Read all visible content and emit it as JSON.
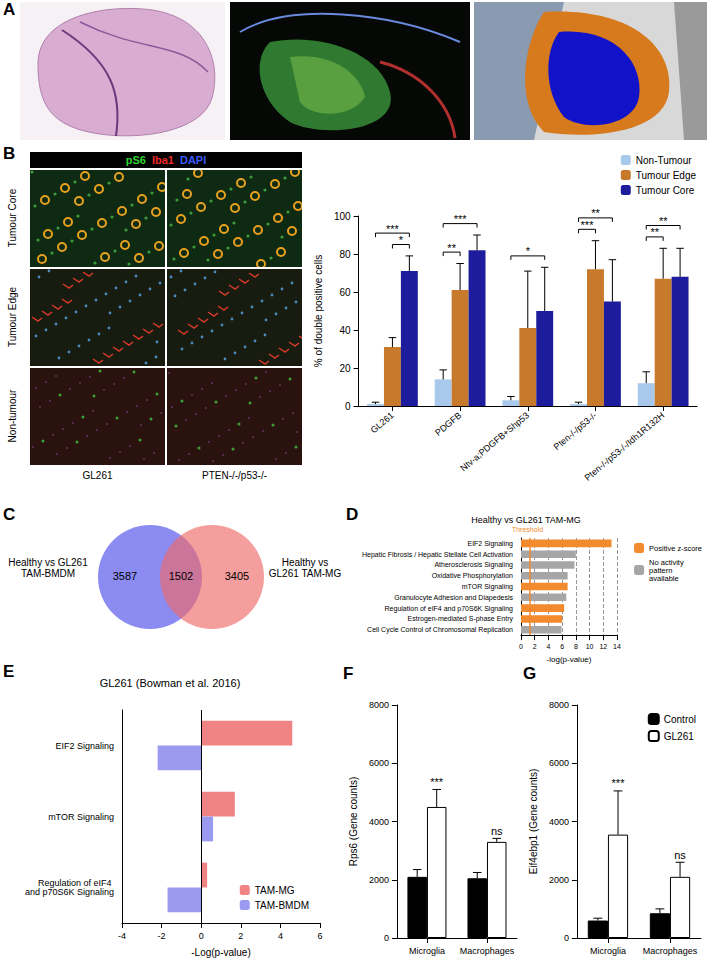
{
  "panel_labels": [
    "A",
    "B",
    "C",
    "D",
    "E",
    "F",
    "G"
  ],
  "panel_b_images": {
    "stains": [
      {
        "text": "pS6",
        "color": "#2fd12f"
      },
      {
        "text": "Iba1",
        "color": "#f02a2a"
      },
      {
        "text": "DAPI",
        "color": "#3a5cff"
      }
    ],
    "rows": [
      "Tumour Core",
      "Tumour Edge",
      "Non-tumour"
    ],
    "columns": [
      "GL261",
      "PTEN-/-/p53-/-"
    ]
  },
  "venn": {
    "left_label": "Healthy vs GL261 TAM-BMDM",
    "right_label": "Healthy vs GL261 TAM-MG",
    "left_only": 3587,
    "overlap": 1502,
    "right_only": 3405,
    "left_color": "#6464ee",
    "right_color": "#f06a6a"
  },
  "chart_data": [
    {
      "type": "bar",
      "ylabel": "% of double positive cells",
      "categories": [
        "GL261",
        "PDGFB",
        "Ntv-a;PDGFB+Shp53",
        "Pten-/-/p53-/-",
        "Pten-/-/p53-/-/Idh1R132H"
      ],
      "series": [
        {
          "name": "Non-Tumour",
          "color": "#a9c9ec",
          "values": [
            1,
            14,
            3,
            1,
            12
          ],
          "errors": [
            1,
            5,
            2,
            1,
            6
          ]
        },
        {
          "name": "Tumour Edge",
          "color": "#c77a2c",
          "values": [
            31,
            61,
            41,
            72,
            67
          ],
          "errors": [
            5,
            14,
            30,
            15,
            16
          ]
        },
        {
          "name": "Tumour Core",
          "color": "#1c1c9c",
          "values": [
            71,
            82,
            50,
            55,
            68
          ],
          "errors": [
            8,
            8,
            23,
            22,
            15
          ]
        }
      ],
      "ylim": [
        0,
        100
      ],
      "yticks": [
        0,
        20,
        40,
        60,
        80,
        100
      ],
      "grid": false,
      "legend": "upper right",
      "significance": [
        {
          "category": "GL261",
          "from": "Tumour Edge",
          "to": "Tumour Core",
          "label": "*"
        },
        {
          "category": "GL261",
          "from": "Non-Tumour",
          "to": "Tumour Core",
          "label": "***"
        },
        {
          "category": "PDGFB",
          "from": "Non-Tumour",
          "to": "Tumour Edge",
          "label": "**"
        },
        {
          "category": "PDGFB",
          "from": "Non-Tumour",
          "to": "Tumour Core",
          "label": "***"
        },
        {
          "category": "Ntv-a;PDGFB+Shp53",
          "from": "Non-Tumour",
          "to": "Tumour Core",
          "label": "*"
        },
        {
          "category": "Pten-/-/p53-/-",
          "from": "Non-Tumour",
          "to": "Tumour Edge",
          "label": "***"
        },
        {
          "category": "Pten-/-/p53-/-",
          "from": "Non-Tumour",
          "to": "Tumour Core",
          "label": "**"
        },
        {
          "category": "Pten-/-/p53-/-/Idh1R132H",
          "from": "Non-Tumour",
          "to": "Tumour Edge",
          "label": "**"
        },
        {
          "category": "Pten-/-/p53-/-/Idh1R132H",
          "from": "Non-Tumour",
          "to": "Tumour Core",
          "label": "**"
        }
      ]
    },
    {
      "type": "bar",
      "orientation": "horizontal",
      "title": "Healthy vs GL261 TAM-MG",
      "xlabel": "-log(p-value)",
      "categories": [
        "EIF2 Signaling",
        "Hepatic Fibrosis / Hepatic Stellate Cell Activation",
        "Atherosclerosis Signaling",
        "Oxidative Phosphorylation",
        "mTOR Signaling",
        "Granulocyte Adhesion and Diapedesis",
        "Regulation of eIF4 and p70S6K Signaling",
        "Estrogen-mediated S-phase Entry",
        "Cell Cycle Control of Chromosomal Replication"
      ],
      "series": [
        {
          "name": "Positive z-score",
          "color": "#f28a2e",
          "values": [
            13.2,
            null,
            null,
            null,
            6.8,
            null,
            6.3,
            6.0,
            null
          ]
        },
        {
          "name": "No activity pattern available",
          "color": "#a6a6a6",
          "values": [
            null,
            8.0,
            7.8,
            6.8,
            null,
            6.6,
            null,
            null,
            5.9
          ]
        }
      ],
      "stacked": true,
      "xlim": [
        0,
        14
      ],
      "xticks": [
        0,
        2,
        4,
        6,
        8,
        10,
        12,
        14
      ],
      "grid": true,
      "legend": "right",
      "threshold": {
        "value": 1.3,
        "label": "Threshold"
      }
    },
    {
      "type": "bar",
      "orientation": "horizontal",
      "title": "GL261 (Bowman et al. 2016)",
      "xlabel": "-Log(p-value)",
      "categories": [
        "EIF2 Signaling",
        "mTOR Signaling",
        "Regulation of eIF4 and p70S6K Signaling"
      ],
      "series": [
        {
          "name": "TAM-MG",
          "color": "#f08484",
          "values": [
            4.6,
            1.7,
            0.3
          ]
        },
        {
          "name": "TAM-BMDM",
          "color": "#9a9af0",
          "values": [
            -2.2,
            0.6,
            -1.7
          ]
        }
      ],
      "xlim": [
        -4,
        6
      ],
      "xticks": [
        -4,
        -2,
        0,
        2,
        4,
        6
      ],
      "grid": false,
      "legend": "lower right"
    },
    {
      "type": "bar",
      "ylabel": "Rps6 (Gene counts)",
      "categories": [
        "Microglia",
        "Macrophages"
      ],
      "series": [
        {
          "name": "Control",
          "color": "#000000",
          "values": [
            2100,
            2050
          ],
          "errors": [
            250,
            200
          ]
        },
        {
          "name": "GL261",
          "color": "#ffffff",
          "values": [
            4500,
            3300
          ],
          "errors": [
            600,
            120
          ]
        }
      ],
      "ylim": [
        0,
        8000
      ],
      "yticks": [
        0,
        2000,
        4000,
        6000,
        8000
      ],
      "grid": false,
      "annotations": [
        {
          "category": "Microglia",
          "series": "GL261",
          "label": "***"
        },
        {
          "category": "Macrophages",
          "series": "GL261",
          "label": "ns"
        }
      ]
    },
    {
      "type": "bar",
      "ylabel": "Eif4ebp1 (Gene counts)",
      "categories": [
        "Microglia",
        "Macrophages"
      ],
      "series": [
        {
          "name": "Control",
          "color": "#000000",
          "values": [
            600,
            850
          ],
          "errors": [
            80,
            150
          ]
        },
        {
          "name": "GL261",
          "color": "#ffffff",
          "values": [
            3550,
            2100
          ],
          "errors": [
            1500,
            500
          ]
        }
      ],
      "ylim": [
        0,
        8000
      ],
      "yticks": [
        0,
        2000,
        4000,
        6000,
        8000
      ],
      "grid": false,
      "legend": "upper right",
      "annotations": [
        {
          "category": "Microglia",
          "series": "GL261",
          "label": "***"
        },
        {
          "category": "Macrophages",
          "series": "GL261",
          "label": "ns"
        }
      ]
    }
  ]
}
